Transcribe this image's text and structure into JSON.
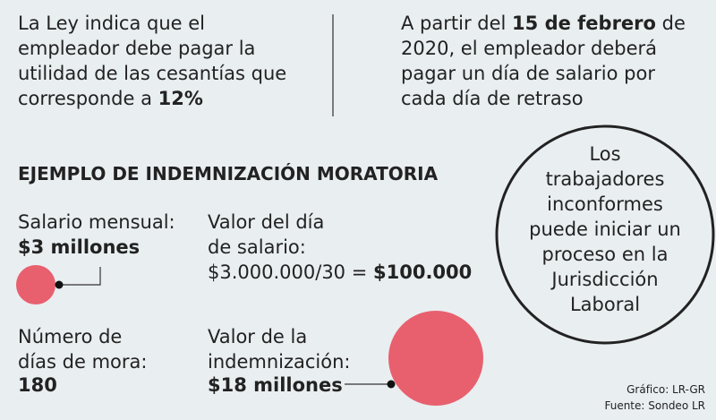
{
  "left_note": {
    "lines": [
      "La Ley indica que el",
      "empleador debe pagar la",
      "utilidad de las cesantías que"
    ],
    "last_line": "corresponde a",
    "highlight": "12%"
  },
  "right_note": {
    "lead": "A partir del",
    "date": "15 de febrero",
    "trail": "de",
    "lines": [
      "2020, el empleador deberá",
      "pagar un día de salario por",
      "cada día de retraso"
    ]
  },
  "title": "EJEMPLO DE INDEMNIZACIÓN MORATORIA",
  "salary": {
    "label": "Salario mensual:",
    "value": "$3 millones"
  },
  "day_value": {
    "label_lines": [
      "Valor del día",
      "de salario:"
    ],
    "formula": "$3.000.000/30 =",
    "result": "$100.000"
  },
  "days": {
    "label_lines": [
      "Número de",
      "días de mora:"
    ],
    "value": "180"
  },
  "indemnity": {
    "label_lines": [
      "Valor de la",
      "indemnización:"
    ],
    "value": "$18 millones"
  },
  "callout": {
    "lines": [
      "Los",
      "trabajadores",
      "inconformes",
      "puede iniciar un",
      "proceso en la",
      "Jurisdicción",
      "Laboral"
    ]
  },
  "credits": {
    "graphic": "Gráfico: LR-GR",
    "source": "Fuente: Sondeo LR"
  }
}
